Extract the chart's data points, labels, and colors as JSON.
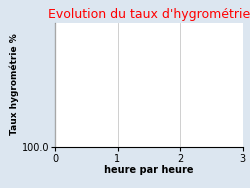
{
  "title": "Evolution du taux d'hygrométrie",
  "title_color": "#ff0000",
  "xlabel": "heure par heure",
  "ylabel": "Taux hygrométrie %",
  "background_color": "#dce6f0",
  "plot_background_color": "#ffffff",
  "xlim": [
    0,
    3
  ],
  "xticks": [
    0,
    1,
    2,
    3
  ],
  "ytick_label": "100.0",
  "grid_color": "#c8c8c8",
  "title_fontsize": 9,
  "axis_label_fontsize": 7,
  "tick_fontsize": 7,
  "ylabel_fontsize": 6.5
}
